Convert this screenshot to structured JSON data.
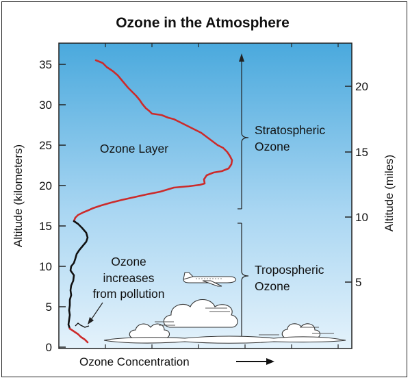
{
  "title": "Ozone in the Atmosphere",
  "axes": {
    "left_label": "Altitude (kilometers)",
    "right_label": "Altitude (miles)",
    "bottom_label": "Ozone Concentration",
    "left_ticks": [
      "0",
      "5",
      "10",
      "15",
      "20",
      "25",
      "30",
      "35"
    ],
    "right_ticks": [
      "5",
      "10",
      "15",
      "20"
    ]
  },
  "labels": {
    "ozone_layer": "Ozone Layer",
    "pollution_line1": "Ozone",
    "pollution_line2": "increases",
    "pollution_line3": "from pollution",
    "strat_line1": "Stratospheric",
    "strat_line2": "Ozone",
    "trop_line1": "Tropospheric",
    "trop_line2": "Ozone"
  },
  "colors": {
    "sky_top": "#4aa9dd",
    "sky_bottom": "#e4f2fb",
    "stratospheric_curve": "#cc2a2a",
    "tropospheric_curve": "#111111",
    "surface_curve": "#cc2a2a"
  },
  "icons": {
    "airplane": "airplane-icon",
    "clouds": "cloud-icon",
    "arrow": "arrow-right-icon"
  }
}
